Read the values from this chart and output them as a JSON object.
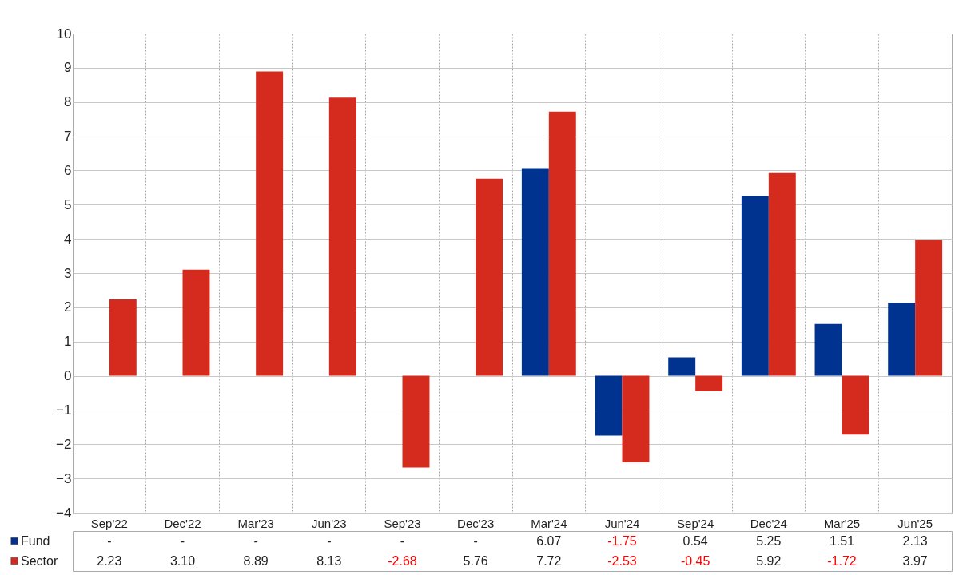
{
  "chart_data": {
    "type": "bar",
    "categories": [
      "Sep'22",
      "Dec'22",
      "Mar'23",
      "Jun'23",
      "Sep'23",
      "Dec'23",
      "Mar'24",
      "Jun'24",
      "Sep'24",
      "Dec'24",
      "Mar'25",
      "Jun'25"
    ],
    "series": [
      {
        "name": "Fund",
        "color": "#003290",
        "values": [
          null,
          null,
          null,
          null,
          null,
          null,
          6.07,
          -1.75,
          0.54,
          5.25,
          1.51,
          2.13
        ],
        "value_labels": [
          "-",
          "-",
          "-",
          "-",
          "-",
          "-",
          "6.07",
          "-1.75",
          "0.54",
          "5.25",
          "1.51",
          "2.13"
        ]
      },
      {
        "name": "Sector",
        "color": "#d52b1e",
        "values": [
          2.23,
          3.1,
          8.89,
          8.13,
          -2.68,
          5.76,
          7.72,
          -2.53,
          -0.45,
          5.92,
          -1.72,
          3.97
        ],
        "value_labels": [
          "2.23",
          "3.10",
          "8.89",
          "8.13",
          "-2.68",
          "5.76",
          "7.72",
          "-2.53",
          "-0.45",
          "5.92",
          "-1.72",
          "3.97"
        ]
      }
    ],
    "ylim": [
      -4,
      10
    ],
    "yticks": [
      -4,
      -3,
      -2,
      -1,
      0,
      1,
      2,
      3,
      4,
      5,
      6,
      7,
      8,
      9,
      10
    ],
    "grid": true,
    "legend": "bottom"
  }
}
